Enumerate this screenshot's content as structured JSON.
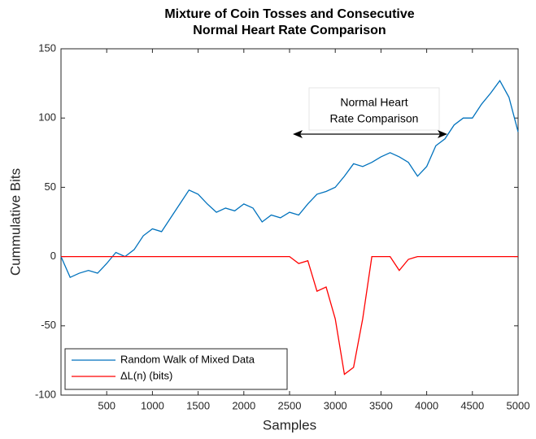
{
  "chart_data": {
    "type": "line",
    "title": [
      "Mixture of Coin Tosses and Consecutive",
      "Normal Heart Rate Comparison"
    ],
    "x_label": "Samples",
    "y_label": "Cummulative Bits",
    "annotation": [
      "Normal Heart",
      "Rate Comparison"
    ],
    "x": [
      0,
      100,
      200,
      300,
      400,
      500,
      600,
      700,
      800,
      900,
      1000,
      1100,
      1200,
      1300,
      1400,
      1500,
      1600,
      1700,
      1800,
      1900,
      2000,
      2100,
      2200,
      2300,
      2400,
      2500,
      2600,
      2700,
      2800,
      2900,
      3000,
      3100,
      3200,
      3300,
      3400,
      3500,
      3600,
      3700,
      3800,
      3900,
      4000,
      4100,
      4200,
      4300,
      4400,
      4500,
      4600,
      4700,
      4800,
      4900,
      5000
    ],
    "series": [
      {
        "name": "Random Walk of Mixed Data",
        "color": "#0072bd",
        "values": [
          0,
          -15,
          -12,
          -10,
          -12,
          -5,
          3,
          0,
          5,
          15,
          20,
          18,
          28,
          38,
          48,
          45,
          38,
          32,
          35,
          33,
          38,
          35,
          25,
          30,
          28,
          32,
          30,
          38,
          45,
          47,
          50,
          58,
          67,
          65,
          68,
          72,
          75,
          72,
          68,
          58,
          65,
          80,
          85,
          95,
          100,
          100,
          110,
          118,
          127,
          115,
          90
        ]
      },
      {
        "name": "ΔL(n) (bits)",
        "color": "#ff0000",
        "values": [
          0,
          0,
          0,
          0,
          0,
          0,
          0,
          0,
          0,
          0,
          0,
          0,
          0,
          0,
          0,
          0,
          0,
          0,
          0,
          0,
          0,
          0,
          0,
          0,
          0,
          0,
          -5,
          -3,
          -25,
          -22,
          -45,
          -85,
          -80,
          -45,
          0,
          0,
          0,
          -10,
          -2,
          0,
          0,
          0,
          0,
          0,
          0,
          0,
          0,
          0,
          0,
          0,
          0
        ]
      }
    ],
    "xlim": [
      0,
      5000
    ],
    "xticks": [
      500,
      1000,
      1500,
      2000,
      2500,
      3000,
      3500,
      4000,
      4500,
      5000
    ],
    "ylim": [
      -100,
      150
    ],
    "yticks": [
      -100,
      -50,
      0,
      50,
      100,
      150
    ],
    "legend": "lower left"
  }
}
